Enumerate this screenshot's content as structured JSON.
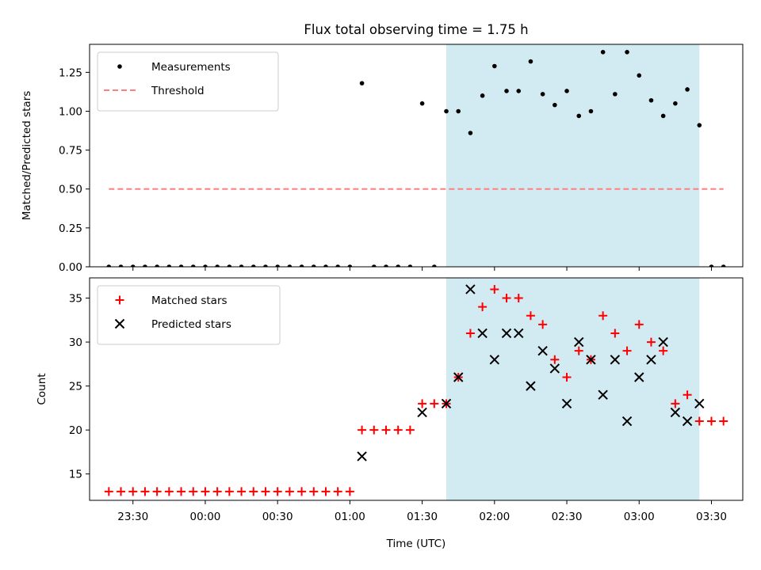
{
  "title": "Flux total observing time = 1.75 h",
  "xlabel": "Time (UTC)",
  "colors": {
    "highlight": "#add8e6",
    "threshold": "#ff7f7f",
    "matched": "#ff0000",
    "predicted": "#000000",
    "measurement": "#000000"
  },
  "x_ticks": [
    "23:30",
    "00:00",
    "00:30",
    "01:00",
    "01:30",
    "02:00",
    "02:30",
    "03:00",
    "03:30"
  ],
  "chart_data": [
    {
      "type": "scatter",
      "ylabel": "Matched/Predicted stars",
      "ylim": [
        0,
        1.43
      ],
      "yticks": [
        "0.00",
        "0.25",
        "0.50",
        "0.75",
        "1.00",
        "1.25"
      ],
      "legend_position": "top-left",
      "highlight_span": [
        "01:40",
        "03:25"
      ],
      "series": [
        {
          "name": "Measurements",
          "marker": "dot",
          "x": [
            "23:20",
            "23:25",
            "23:30",
            "23:35",
            "23:40",
            "23:45",
            "23:50",
            "23:55",
            "00:00",
            "00:05",
            "00:10",
            "00:15",
            "00:20",
            "00:25",
            "00:30",
            "00:35",
            "00:40",
            "00:45",
            "00:50",
            "00:55",
            "01:00",
            "01:05",
            "01:10",
            "01:15",
            "01:20",
            "01:25",
            "01:30",
            "01:35",
            "01:40",
            "01:45",
            "01:50",
            "01:55",
            "02:00",
            "02:05",
            "02:10",
            "02:15",
            "02:20",
            "02:25",
            "02:30",
            "02:35",
            "02:40",
            "02:45",
            "02:50",
            "02:55",
            "03:00",
            "03:05",
            "03:10",
            "03:15",
            "03:20",
            "03:25",
            "03:30",
            "03:35"
          ],
          "y": [
            0,
            0,
            0,
            0,
            0,
            0,
            0,
            0,
            0,
            0,
            0,
            0,
            0,
            0,
            0,
            0,
            0,
            0,
            0,
            0,
            0,
            1.18,
            0,
            0,
            0,
            0,
            1.05,
            0,
            1.0,
            1.0,
            0.86,
            1.1,
            1.29,
            1.13,
            1.13,
            1.32,
            1.11,
            1.04,
            1.13,
            0.97,
            1.0,
            1.38,
            1.11,
            1.38,
            1.23,
            1.07,
            0.97,
            1.05,
            1.14,
            0.91,
            0,
            0
          ]
        },
        {
          "name": "Threshold",
          "style": "dashed-line",
          "x": [
            "23:20",
            "03:35"
          ],
          "y": [
            0.5,
            0.5
          ]
        }
      ]
    },
    {
      "type": "scatter",
      "ylabel": "Count",
      "ylim": [
        12,
        37.3
      ],
      "yticks": [
        "15",
        "20",
        "25",
        "30",
        "35"
      ],
      "legend_position": "top-left",
      "highlight_span": [
        "01:40",
        "03:25"
      ],
      "series": [
        {
          "name": "Matched stars",
          "marker": "plus",
          "x": [
            "23:20",
            "23:25",
            "23:30",
            "23:35",
            "23:40",
            "23:45",
            "23:50",
            "23:55",
            "00:00",
            "00:05",
            "00:10",
            "00:15",
            "00:20",
            "00:25",
            "00:30",
            "00:35",
            "00:40",
            "00:45",
            "00:50",
            "00:55",
            "01:00",
            "01:05",
            "01:10",
            "01:15",
            "01:20",
            "01:25",
            "01:30",
            "01:35",
            "01:40",
            "01:45",
            "01:50",
            "01:55",
            "02:00",
            "02:05",
            "02:10",
            "02:15",
            "02:20",
            "02:25",
            "02:30",
            "02:35",
            "02:40",
            "02:45",
            "02:50",
            "02:55",
            "03:00",
            "03:05",
            "03:10",
            "03:15",
            "03:20",
            "03:25",
            "03:30",
            "03:35"
          ],
          "y": [
            13,
            13,
            13,
            13,
            13,
            13,
            13,
            13,
            13,
            13,
            13,
            13,
            13,
            13,
            13,
            13,
            13,
            13,
            13,
            13,
            13,
            20,
            20,
            20,
            20,
            20,
            23,
            23,
            23,
            26,
            31,
            34,
            36,
            35,
            35,
            33,
            32,
            28,
            26,
            29,
            28,
            33,
            31,
            29,
            32,
            30,
            29,
            23,
            24,
            21,
            21,
            21
          ]
        },
        {
          "name": "Predicted stars",
          "marker": "x",
          "x": [
            "01:05",
            "01:30",
            "01:40",
            "01:45",
            "01:50",
            "01:55",
            "02:00",
            "02:05",
            "02:10",
            "02:15",
            "02:20",
            "02:25",
            "02:30",
            "02:35",
            "02:40",
            "02:45",
            "02:50",
            "02:55",
            "03:00",
            "03:05",
            "03:10",
            "03:15",
            "03:20",
            "03:25"
          ],
          "y": [
            17,
            22,
            23,
            26,
            36,
            31,
            28,
            31,
            31,
            25,
            29,
            27,
            23,
            30,
            28,
            24,
            28,
            21,
            26,
            28,
            30,
            22,
            21,
            23
          ]
        }
      ]
    }
  ]
}
